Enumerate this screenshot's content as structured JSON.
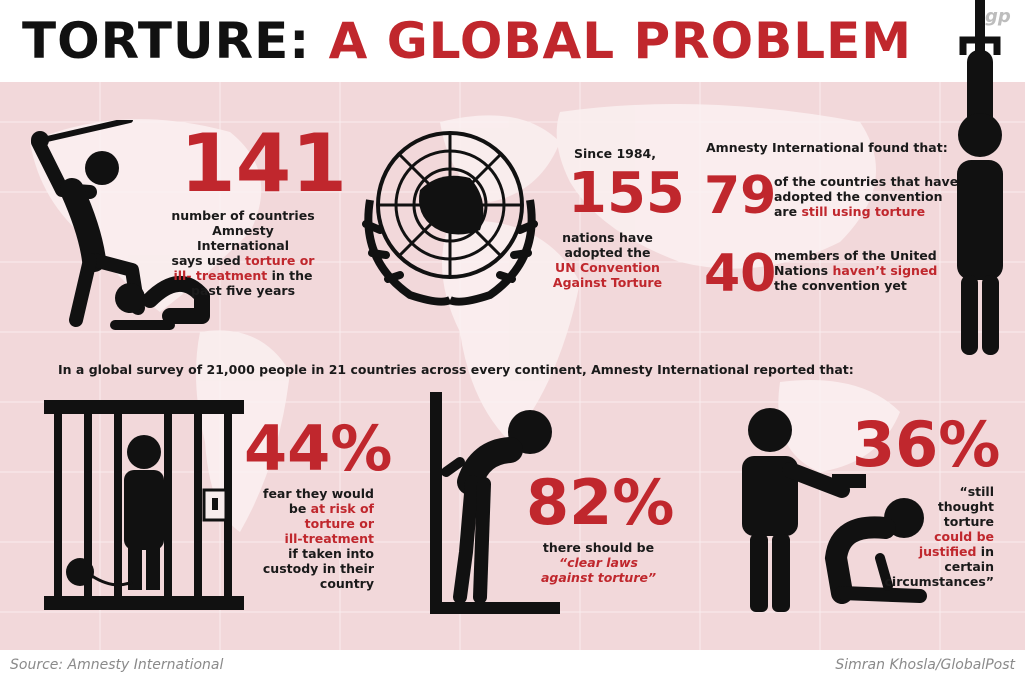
{
  "header": {
    "title_part1": "TORTURE:",
    "title_part2": "A GLOBAL PROBLEM",
    "logo": "gp"
  },
  "colors": {
    "accent": "#c0272d",
    "dark": "#111111",
    "map_bg": "#f2d8da"
  },
  "stat_141": {
    "value": "141",
    "line1": "number of countries",
    "line2": "Amnesty International",
    "line3_pre": "says used ",
    "line3_red": "torture or",
    "line4_red": "ill- treatment",
    "line4_post": " in the",
    "line5": "past five years"
  },
  "stat_155": {
    "intro": "Since 1984,",
    "value": "155",
    "line1": "nations have",
    "line2": "adopted the",
    "line3_red": "UN Convention",
    "line4_red": "Against Torture"
  },
  "amnesty": {
    "intro": "Amnesty International found that:",
    "stat79_value": "79",
    "stat79_line1": "of the countries that have",
    "stat79_line2": "adopted the convention",
    "stat79_line3_pre": "are ",
    "stat79_line3_red": "still using torture",
    "stat40_value": "40",
    "stat40_line1": "members of the United",
    "stat40_line2_pre": "Nations ",
    "stat40_line2_red": "haven’t signed",
    "stat40_line3": "the convention yet"
  },
  "survey_text": "In a global survey of 21,000 people in 21 countries across every continent, Amnesty International reported that:",
  "stat_44": {
    "value": "44%",
    "line1": "fear they would",
    "line2_pre": "be ",
    "line2_red": "at risk of",
    "line3_red": "torture or",
    "line4_red": "ill-treatment",
    "line5": "if taken into",
    "line6": "custody in their",
    "line7": "country"
  },
  "stat_82": {
    "value": "82%",
    "line1": "there should be",
    "line2_red": "“clear laws",
    "line3_red": "against torture”"
  },
  "stat_36": {
    "value": "36%",
    "line1": "“still",
    "line2": "thought",
    "line3": "torture",
    "line4_red": "could be",
    "line5_red": "justified",
    "line5_post": " in",
    "line6": "certain",
    "line7": "circumstances”"
  },
  "footer": {
    "source": "Source: Amnesty International",
    "credit": "Simran Khosla/GlobalPost"
  },
  "icons": [
    "baton-beating-icon",
    "un-emblem-icon",
    "hanging-figure-icon",
    "prisoner-cage-icon",
    "stress-position-icon",
    "gunpoint-icon"
  ]
}
